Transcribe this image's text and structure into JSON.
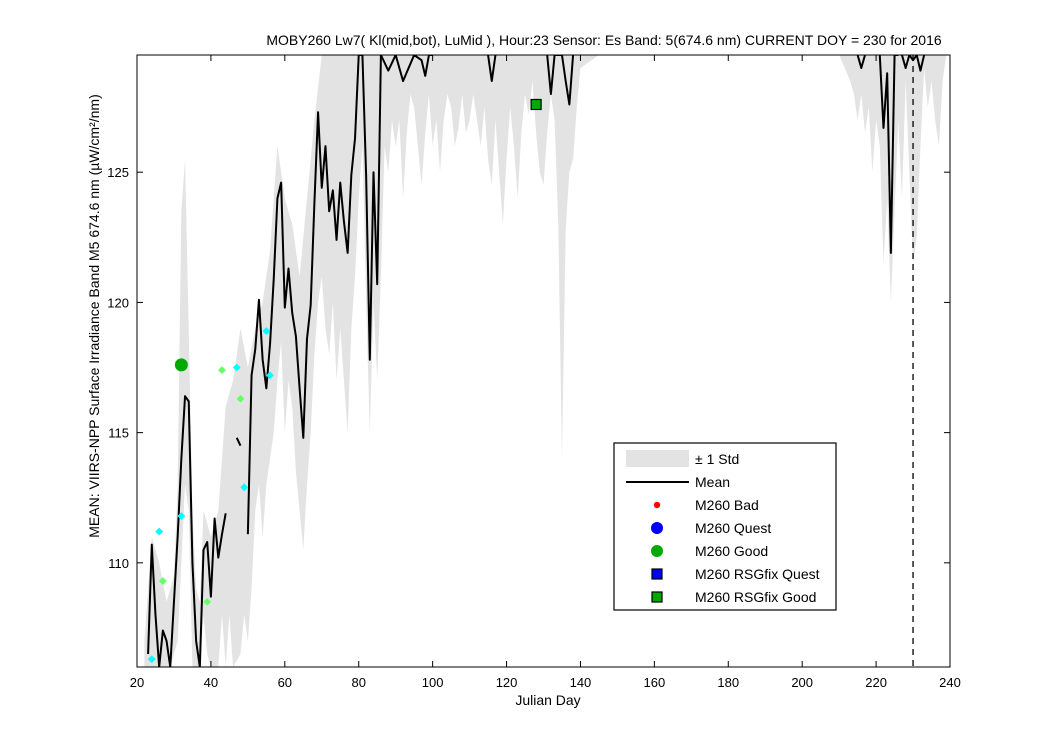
{
  "chart_data": {
    "type": "line",
    "title": "MOBY260   Lw7( Kl(mid,bot), LuMid ),   Hour:23 Sensor: Es Band: 5(674.6 nm)   CURRENT DOY = 230 for 2016",
    "xlabel": "Julian Day",
    "ylabel": "MEAN: VIIRS-NPP Surface Irradiance Band M5 674.6 nm (µW/cm²/nm)",
    "xlim": [
      20,
      240
    ],
    "ylim": [
      106,
      129.5
    ],
    "xticks": [
      20,
      40,
      60,
      80,
      100,
      120,
      140,
      160,
      180,
      200,
      220,
      240
    ],
    "yticks": [
      110,
      115,
      120,
      125
    ],
    "current_doy": 230,
    "legend_position": "lower-right",
    "colors": {
      "mean": "#000000",
      "std_band": "#e3e3e3",
      "bad": "#ff0000",
      "quest": "#0000ff",
      "good": "#00aa00",
      "prev_quest": "#00ffff",
      "prev_good": "#66ff66"
    },
    "legend": [
      {
        "label": "± 1 Std",
        "kind": "band",
        "color": "#e3e3e3"
      },
      {
        "label": "Mean",
        "kind": "line",
        "color": "#000000"
      },
      {
        "label": "M260 Bad",
        "kind": "dot-small",
        "color": "#ff0000"
      },
      {
        "label": "M260 Quest",
        "kind": "dot",
        "color": "#0000ff"
      },
      {
        "label": "M260 Good",
        "kind": "dot",
        "color": "#00aa00"
      },
      {
        "label": "M260 RSGfix Quest",
        "kind": "square",
        "color": "#0000ff"
      },
      {
        "label": "M260 RSGfix Good",
        "kind": "square",
        "color": "#00aa00"
      }
    ],
    "mean_series": [
      [
        [
          23,
          106.5
        ],
        [
          24,
          110.7
        ],
        [
          25,
          108
        ],
        [
          26,
          106
        ],
        [
          27,
          107.4
        ],
        [
          28,
          107
        ],
        [
          29,
          106
        ],
        [
          31,
          111
        ],
        [
          32,
          114
        ],
        [
          33,
          116.4
        ],
        [
          34,
          116.2
        ],
        [
          35,
          110
        ],
        [
          36,
          107
        ],
        [
          37,
          106
        ],
        [
          38,
          110.5
        ],
        [
          39,
          110.8
        ],
        [
          40,
          108.7
        ],
        [
          41,
          111.7
        ],
        [
          42,
          110.2
        ],
        [
          43,
          111.1
        ],
        [
          44,
          111.9
        ]
      ],
      [
        [
          47,
          114.8
        ],
        [
          48,
          114.5
        ]
      ],
      [
        [
          50,
          111.1
        ],
        [
          51,
          117.2
        ],
        [
          52,
          118.2
        ],
        [
          53,
          120.1
        ],
        [
          54,
          117.8
        ],
        [
          55,
          116.7
        ],
        [
          56,
          118.4
        ],
        [
          57,
          120.9
        ],
        [
          58,
          124
        ],
        [
          59,
          124.6
        ],
        [
          60,
          119.8
        ],
        [
          61,
          121.3
        ],
        [
          62,
          119.6
        ],
        [
          63,
          118.7
        ],
        [
          64,
          116.7
        ],
        [
          65,
          114.8
        ],
        [
          66,
          118.6
        ],
        [
          67,
          119.9
        ],
        [
          68,
          123.8
        ],
        [
          69,
          127.3
        ],
        [
          70,
          124.4
        ],
        [
          71,
          126
        ],
        [
          72,
          123.5
        ],
        [
          73,
          124.3
        ],
        [
          74,
          122.4
        ],
        [
          75,
          124.6
        ],
        [
          76,
          123.1
        ],
        [
          77,
          121.9
        ],
        [
          78,
          124.9
        ],
        [
          79,
          126.3
        ],
        [
          80,
          129.5
        ],
        [
          81,
          129.5
        ],
        [
          82,
          124.9
        ],
        [
          83,
          117.8
        ],
        [
          84,
          125
        ],
        [
          85,
          120.7
        ],
        [
          86,
          129.5
        ],
        [
          88,
          128.9
        ],
        [
          90,
          129.5
        ],
        [
          92,
          128.5
        ],
        [
          95,
          129.5
        ],
        [
          97,
          129.3
        ],
        [
          98,
          128.7
        ],
        [
          99,
          129.5
        ],
        [
          100,
          129.5
        ]
      ],
      [
        [
          115,
          129.5
        ],
        [
          116,
          128.5
        ],
        [
          117,
          129.5
        ]
      ],
      [
        [
          131,
          129.5
        ],
        [
          132,
          128
        ],
        [
          133,
          129.5
        ],
        [
          135,
          129.5
        ],
        [
          136,
          128.5
        ],
        [
          137,
          127.6
        ],
        [
          138,
          129.5
        ]
      ],
      [
        [
          215,
          129.5
        ],
        [
          216,
          129
        ],
        [
          217,
          129.5
        ]
      ],
      [
        [
          221,
          129.5
        ],
        [
          222,
          126.7
        ],
        [
          223,
          128.8
        ],
        [
          224,
          121.9
        ],
        [
          225,
          129.5
        ],
        [
          226,
          129.5
        ]
      ],
      [
        [
          227,
          129.5
        ],
        [
          228,
          129
        ],
        [
          229,
          129.5
        ],
        [
          230,
          129.3
        ],
        [
          231,
          129.5
        ],
        [
          232,
          128.9
        ],
        [
          233,
          129.5
        ]
      ]
    ],
    "std_upper": [
      [
        22,
        107
      ],
      [
        23,
        109
      ],
      [
        24,
        111
      ],
      [
        26,
        110
      ],
      [
        28,
        108.5
      ],
      [
        30,
        109.5
      ],
      [
        31,
        113
      ],
      [
        32,
        123.5
      ],
      [
        33,
        125.5
      ],
      [
        34,
        119
      ],
      [
        35,
        112
      ],
      [
        36,
        109
      ],
      [
        37,
        108.5
      ],
      [
        38,
        112
      ],
      [
        40,
        111
      ],
      [
        42,
        112
      ],
      [
        44,
        116
      ],
      [
        46,
        117
      ],
      [
        48,
        119
      ],
      [
        50,
        117.5
      ],
      [
        52,
        119
      ],
      [
        54,
        120
      ],
      [
        56,
        122
      ],
      [
        58,
        126
      ],
      [
        60,
        124
      ],
      [
        62,
        123
      ],
      [
        64,
        121
      ],
      [
        66,
        124
      ],
      [
        68,
        127
      ],
      [
        70,
        129.5
      ],
      [
        100,
        129.5
      ],
      [
        112,
        129.5
      ],
      [
        240,
        129.5
      ]
    ],
    "std_lower": [
      [
        22,
        106
      ],
      [
        29,
        106
      ],
      [
        31,
        107
      ],
      [
        32,
        110
      ],
      [
        33,
        113
      ],
      [
        34,
        112
      ],
      [
        35,
        106
      ],
      [
        37,
        106
      ],
      [
        38,
        108
      ],
      [
        39,
        106.5
      ],
      [
        40,
        106
      ],
      [
        42,
        106
      ],
      [
        43,
        108
      ],
      [
        44,
        106
      ],
      [
        45,
        108
      ],
      [
        46,
        106
      ],
      [
        48,
        106.5
      ],
      [
        49,
        108
      ],
      [
        50,
        107
      ],
      [
        51,
        109
      ],
      [
        52,
        112
      ],
      [
        53,
        113
      ],
      [
        54,
        111
      ],
      [
        55,
        113
      ],
      [
        56,
        114
      ],
      [
        57,
        115
      ],
      [
        58,
        117
      ],
      [
        59,
        118.5
      ],
      [
        60,
        115
      ],
      [
        61,
        117
      ],
      [
        62,
        116
      ],
      [
        63,
        113.5
      ],
      [
        64,
        112
      ],
      [
        65,
        110.5
      ],
      [
        66,
        113
      ],
      [
        67,
        115
      ],
      [
        68,
        118
      ],
      [
        69,
        120
      ],
      [
        70,
        121
      ],
      [
        71,
        119
      ],
      [
        72,
        118
      ],
      [
        73,
        120
      ],
      [
        74,
        117
      ],
      [
        75,
        119
      ],
      [
        76,
        117
      ],
      [
        77,
        115
      ],
      [
        78,
        119
      ],
      [
        79,
        121
      ],
      [
        80,
        124
      ],
      [
        81,
        126
      ],
      [
        82,
        120
      ],
      [
        83,
        115
      ],
      [
        84,
        120
      ],
      [
        85,
        117
      ],
      [
        86,
        121
      ],
      [
        87,
        126
      ],
      [
        88,
        125
      ],
      [
        89,
        127
      ],
      [
        90,
        126
      ],
      [
        91,
        127
      ],
      [
        92,
        124
      ],
      [
        93,
        126.5
      ],
      [
        94,
        128
      ],
      [
        95,
        127.5
      ],
      [
        96,
        126
      ],
      [
        97,
        124.5
      ],
      [
        98,
        126.5
      ],
      [
        99,
        128
      ],
      [
        100,
        126
      ],
      [
        101,
        127
      ],
      [
        102,
        125
      ],
      [
        103,
        127
      ],
      [
        104,
        128
      ],
      [
        105,
        127.5
      ],
      [
        106,
        126
      ],
      [
        107,
        126.7
      ],
      [
        108,
        128
      ],
      [
        109,
        126.5
      ],
      [
        110,
        127
      ],
      [
        111,
        128
      ],
      [
        112,
        127
      ],
      [
        113,
        126
      ],
      [
        114,
        127.5
      ],
      [
        115,
        125.5
      ],
      [
        116,
        124.5
      ],
      [
        117,
        127
      ],
      [
        118,
        125
      ],
      [
        119,
        123
      ],
      [
        120,
        125.5
      ],
      [
        121,
        127.5
      ],
      [
        122,
        126
      ],
      [
        123,
        124
      ],
      [
        124,
        126.5
      ],
      [
        125,
        128
      ],
      [
        126,
        127.2
      ],
      [
        127,
        128.5
      ],
      [
        128,
        126.5
      ],
      [
        129,
        125
      ],
      [
        130,
        124.5
      ],
      [
        131,
        126.5
      ],
      [
        132,
        128
      ],
      [
        133,
        127
      ],
      [
        134,
        123
      ],
      [
        135,
        114
      ],
      [
        136,
        122.8
      ],
      [
        137,
        125
      ],
      [
        138,
        125.5
      ],
      [
        139,
        127.5
      ],
      [
        140,
        129
      ],
      [
        145,
        129.5
      ],
      [
        210,
        129.5
      ],
      [
        213,
        128.5
      ],
      [
        214,
        128
      ],
      [
        215,
        127
      ],
      [
        216,
        128
      ],
      [
        217,
        126.5
      ],
      [
        218,
        127.5
      ],
      [
        219,
        125
      ],
      [
        220,
        127
      ],
      [
        221,
        126
      ],
      [
        222,
        121.5
      ],
      [
        223,
        124
      ],
      [
        224,
        120
      ],
      [
        225,
        123.5
      ],
      [
        226,
        127
      ],
      [
        227,
        124
      ],
      [
        228,
        128.5
      ],
      [
        229,
        125
      ],
      [
        230,
        121.5
      ],
      [
        231,
        122.5
      ],
      [
        232,
        126
      ],
      [
        233,
        129
      ],
      [
        234,
        127.5
      ],
      [
        235,
        128.5
      ],
      [
        236,
        127
      ],
      [
        237,
        126
      ],
      [
        238,
        128.5
      ],
      [
        239,
        129.5
      ],
      [
        240,
        129.5
      ]
    ],
    "points": [
      {
        "series": "M260 Good",
        "marker": "dot",
        "x": 32,
        "y": 117.6,
        "color": "#00aa00"
      },
      {
        "series": "M260 RSGfix Good",
        "marker": "square",
        "x": 128,
        "y": 127.6,
        "color": "#00aa00"
      },
      {
        "series": "prior quest",
        "marker": "diamond",
        "x": 24,
        "y": 106.3,
        "color": "#00ffff"
      },
      {
        "series": "prior quest",
        "marker": "diamond",
        "x": 26,
        "y": 111.2,
        "color": "#00ffff"
      },
      {
        "series": "prior quest",
        "marker": "diamond",
        "x": 32,
        "y": 111.8,
        "color": "#00ffff"
      },
      {
        "series": "prior quest",
        "marker": "diamond",
        "x": 47,
        "y": 117.5,
        "color": "#00ffff"
      },
      {
        "series": "prior quest",
        "marker": "diamond",
        "x": 49,
        "y": 112.9,
        "color": "#00ffff"
      },
      {
        "series": "prior quest",
        "marker": "diamond",
        "x": 55,
        "y": 118.9,
        "color": "#00ffff"
      },
      {
        "series": "prior quest",
        "marker": "diamond",
        "x": 56,
        "y": 117.2,
        "color": "#00ffff"
      },
      {
        "series": "prior good",
        "marker": "diamond",
        "x": 27,
        "y": 109.3,
        "color": "#66ff66"
      },
      {
        "series": "prior good",
        "marker": "diamond",
        "x": 39,
        "y": 108.5,
        "color": "#66ff66"
      },
      {
        "series": "prior good",
        "marker": "diamond",
        "x": 43,
        "y": 117.4,
        "color": "#66ff66"
      },
      {
        "series": "prior good",
        "marker": "diamond",
        "x": 48,
        "y": 116.3,
        "color": "#66ff66"
      }
    ]
  }
}
